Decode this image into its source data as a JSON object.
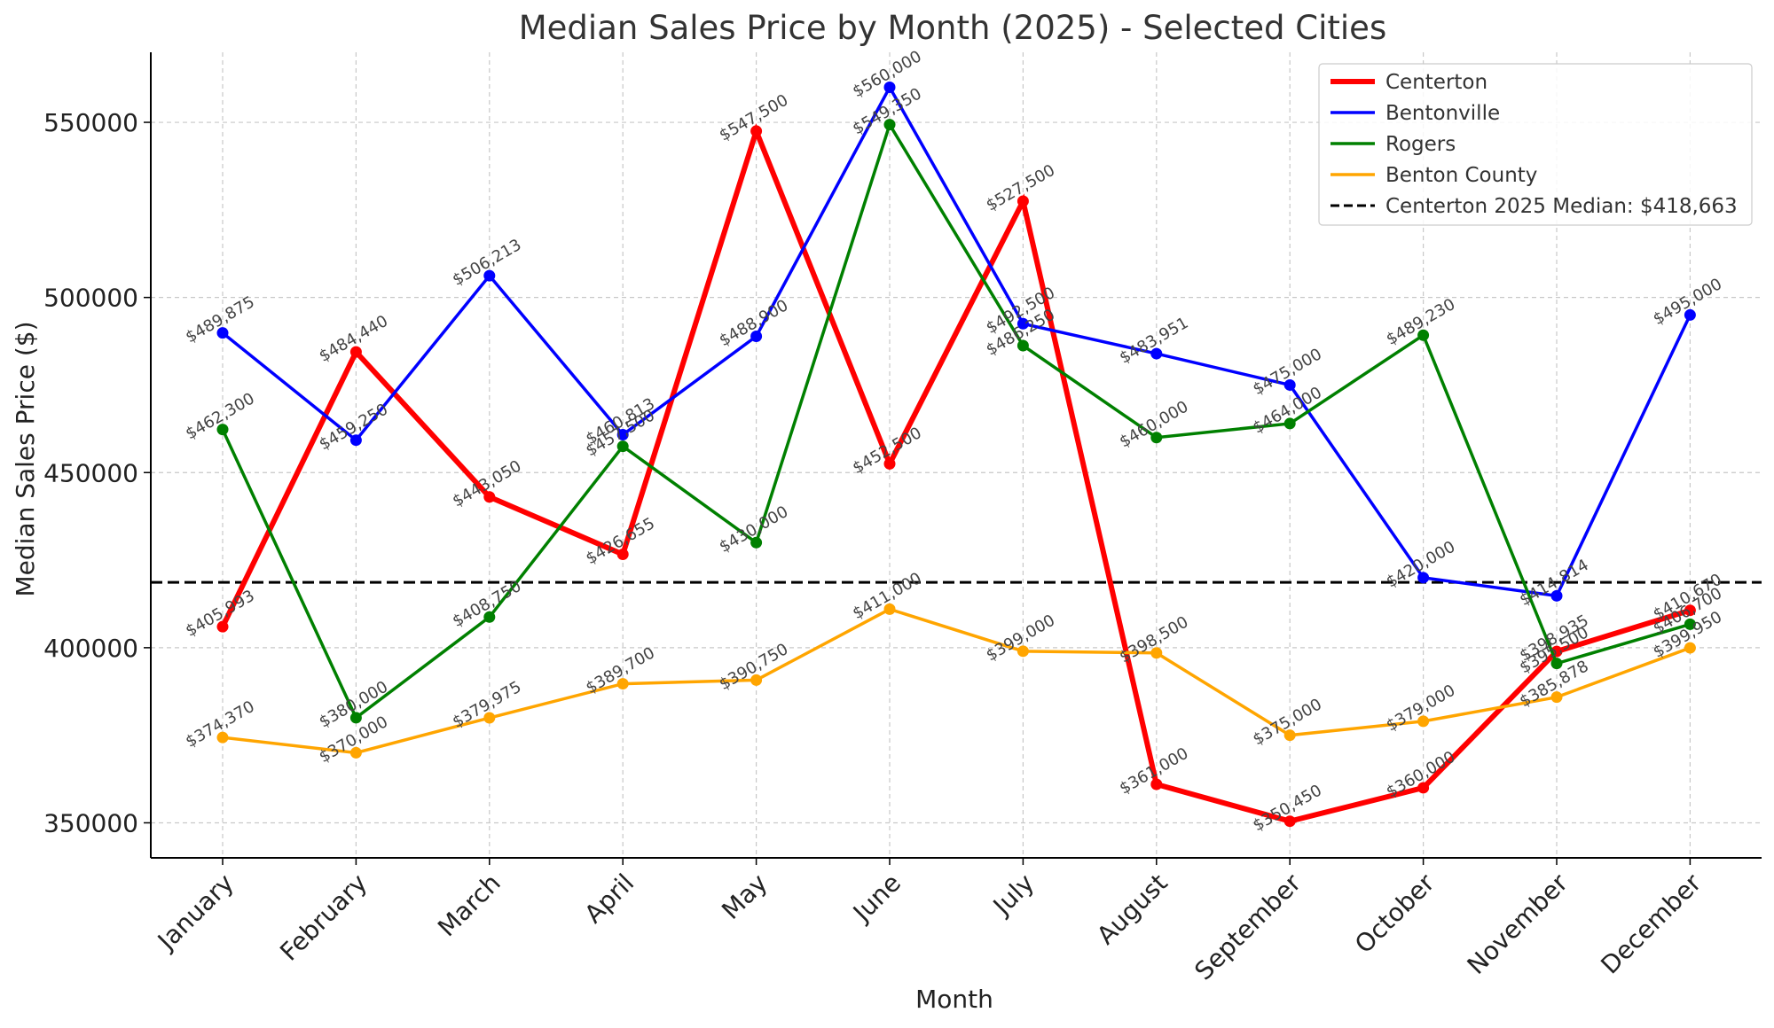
{
  "chart_data": {
    "type": "line",
    "title": "Median Sales Price by Month (2025) - Selected Cities",
    "xlabel": "Month",
    "ylabel": "Median Sales Price ($)",
    "categories": [
      "January",
      "February",
      "March",
      "April",
      "May",
      "June",
      "July",
      "August",
      "September",
      "October",
      "November",
      "December"
    ],
    "ylim": [
      340000,
      570000
    ],
    "yticks": [
      350000,
      400000,
      450000,
      500000,
      550000
    ],
    "ytick_labels": [
      "350000",
      "400000",
      "450000",
      "500000",
      "550000"
    ],
    "grid": true,
    "legend_position": "top-right",
    "series": [
      {
        "name": "Centerton",
        "color": "#ff0000",
        "values": [
          405993,
          484440,
          443050,
          426655,
          547500,
          452500,
          527500,
          361000,
          350450,
          360000,
          398935,
          410670
        ],
        "labels": [
          "$405,993",
          "$484,440",
          "$443,050",
          "$426,655",
          "$547,500",
          "$452,500",
          "$527,500",
          "$361,000",
          "$350,450",
          "$360,000",
          "$398,935",
          "$410,670"
        ]
      },
      {
        "name": "Bentonville",
        "color": "#0000ff",
        "values": [
          489875,
          459250,
          506213,
          460813,
          488900,
          560000,
          492500,
          483951,
          475000,
          420000,
          414814,
          495000
        ],
        "labels": [
          "$489,875",
          "$459,250",
          "$506,213",
          "$460,813",
          "$488,900",
          "$560,000",
          "$492,500",
          "$483,951",
          "$475,000",
          "$420,000",
          "$414,814",
          "$495,000"
        ]
      },
      {
        "name": "Rogers",
        "color": "#008000",
        "values": [
          462300,
          380000,
          408750,
          457500,
          430000,
          549350,
          486250,
          460000,
          464000,
          489230,
          395500,
          406700
        ],
        "labels": [
          "$462,300",
          "$380,000",
          "$408,750",
          "$457,500",
          "$430,000",
          "$549,350",
          "$486,250",
          "$460,000",
          "$464,000",
          "$489,230",
          "$395,500",
          "$406,700"
        ]
      },
      {
        "name": "Benton County",
        "color": "#ffa500",
        "values": [
          374370,
          370000,
          379975,
          389700,
          390750,
          411000,
          399000,
          398500,
          375000,
          379000,
          385878,
          399950
        ],
        "labels": [
          "$374,370",
          "$370,000",
          "$379,975",
          "$389,700",
          "$390,750",
          "$411,000",
          "$399,000",
          "$398,500",
          "$375,000",
          "$379,000",
          "$385,878",
          "$399,950"
        ]
      }
    ],
    "reference_line": {
      "name": "Centerton 2025 Median: $418,663",
      "value": 418663,
      "color": "#000000"
    }
  }
}
